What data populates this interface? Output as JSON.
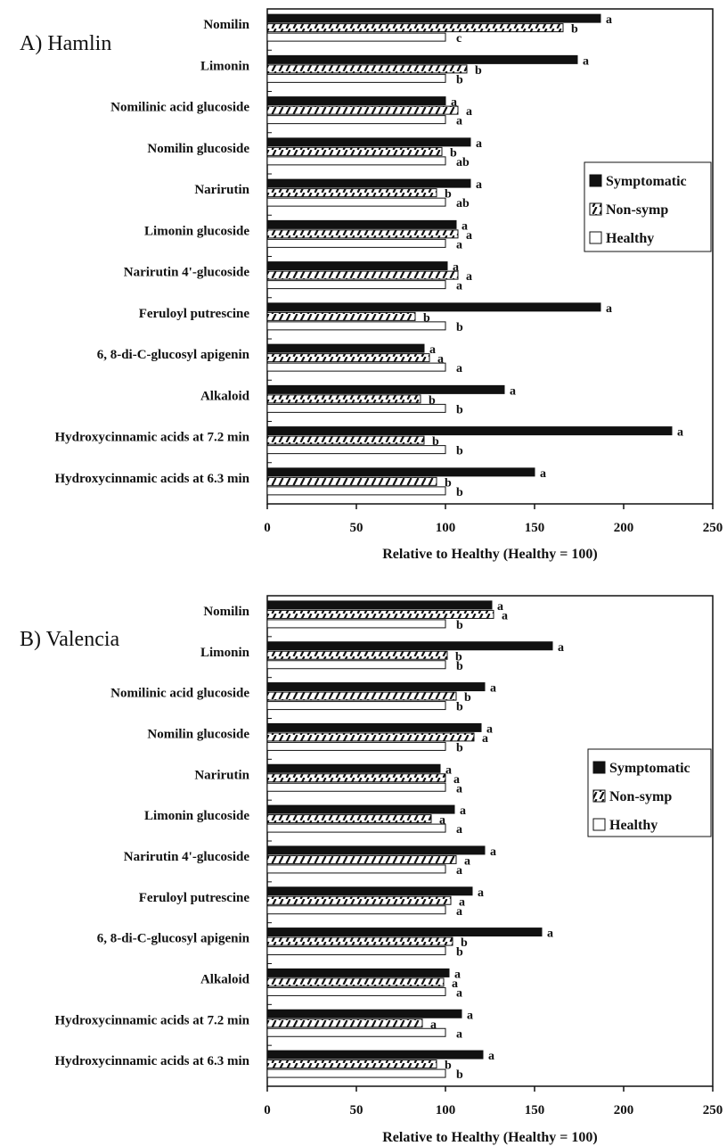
{
  "chart_data": [
    {
      "type": "bar",
      "orientation": "horizontal",
      "title": "A) Hamlin",
      "xlabel": "Relative to Healthy (Healthy = 100)",
      "xlim": [
        0,
        250
      ],
      "xticks": [
        "0",
        "50",
        "100",
        "150",
        "200",
        "250"
      ],
      "categories": [
        "Nomilin",
        "Limonin",
        "Nomilinic acid glucoside",
        "Nomilin glucoside",
        "Narirutin",
        "Limonin glucoside",
        "Narirutin 4'-glucoside",
        "Feruloyl putrescine",
        "6, 8-di-C-glucosyl apigenin",
        "Alkaloid",
        "Hydroxycinnamic acids at 7.2 min",
        "Hydroxycinnamic acids at 6.3 min"
      ],
      "series": [
        {
          "name": "Symptomatic",
          "fill": "solid",
          "values": [
            187,
            174,
            100,
            114,
            114,
            106,
            101,
            187,
            88,
            133,
            227,
            150
          ],
          "labels": [
            "a",
            "a",
            "a",
            "a",
            "a",
            "a",
            "a",
            "a",
            "a",
            "a",
            "a",
            "a"
          ]
        },
        {
          "name": "Non-symp",
          "fill": "hatched",
          "values": [
            166,
            112,
            107,
            98,
            95,
            107,
            107,
            83,
            91,
            86,
            88,
            95
          ],
          "labels": [
            "b",
            "b",
            "a",
            "b",
            "b",
            "a",
            "a",
            "b",
            "a",
            "b",
            "b",
            "b"
          ]
        },
        {
          "name": "Healthy",
          "fill": "open",
          "values": [
            100,
            100,
            100,
            100,
            100,
            100,
            100,
            100,
            100,
            100,
            100,
            100
          ],
          "labels": [
            "c",
            "b",
            "a",
            "ab",
            "ab",
            "a",
            "a",
            "b",
            "a",
            "b",
            "b",
            "b"
          ]
        }
      ],
      "legend": [
        "Symptomatic",
        "Non-symp",
        "Healthy"
      ],
      "legend_position": "right",
      "grid": false
    },
    {
      "type": "bar",
      "orientation": "horizontal",
      "title": "B) Valencia",
      "xlabel": "Relative to Healthy (Healthy = 100)",
      "xlim": [
        0,
        250
      ],
      "xticks": [
        "0",
        "50",
        "100",
        "150",
        "200",
        "250"
      ],
      "categories": [
        "Nomilin",
        "Limonin",
        "Nomilinic acid glucoside",
        "Nomilin glucoside",
        "Narirutin",
        "Limonin glucoside",
        "Narirutin 4'-glucoside",
        "Feruloyl putrescine",
        "6, 8-di-C-glucosyl apigenin",
        "Alkaloid",
        "Hydroxycinnamic acids at 7.2 min",
        "Hydroxycinnamic acids at 6.3 min"
      ],
      "series": [
        {
          "name": "Symptomatic",
          "fill": "solid",
          "values": [
            126,
            160,
            122,
            120,
            97,
            105,
            122,
            115,
            154,
            102,
            109,
            121
          ],
          "labels": [
            "a",
            "a",
            "a",
            "a",
            "a",
            "a",
            "a",
            "a",
            "a",
            "a",
            "a",
            "a"
          ]
        },
        {
          "name": "Non-symp",
          "fill": "hatched",
          "values": [
            127,
            101,
            106,
            116,
            100,
            92,
            106,
            103,
            104,
            99,
            87,
            95
          ],
          "labels": [
            "a",
            "b",
            "b",
            "a",
            "a",
            "a",
            "a",
            "a",
            "b",
            "a",
            "a",
            "b"
          ]
        },
        {
          "name": "Healthy",
          "fill": "open",
          "values": [
            100,
            100,
            100,
            100,
            100,
            100,
            100,
            100,
            100,
            100,
            100,
            100
          ],
          "labels": [
            "b",
            "b",
            "b",
            "b",
            "a",
            "a",
            "a",
            "a",
            "b",
            "a",
            "a",
            "b"
          ]
        }
      ],
      "legend": [
        "Symptomatic",
        "Non-symp",
        "Healthy"
      ],
      "legend_position": "right",
      "grid": false
    }
  ]
}
